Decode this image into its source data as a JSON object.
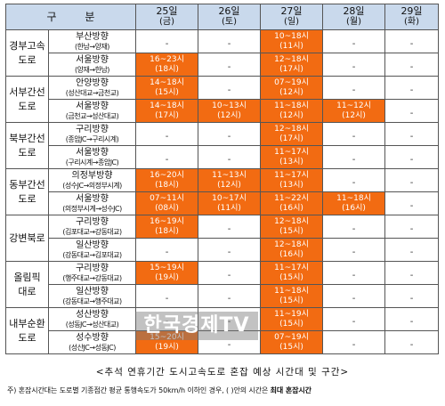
{
  "header": {
    "section": "구 분",
    "days": [
      {
        "date": "25일",
        "weekday": "(금)"
      },
      {
        "date": "26일",
        "weekday": "(토)"
      },
      {
        "date": "27일",
        "weekday": "(일)"
      },
      {
        "date": "28일",
        "weekday": "(월)"
      },
      {
        "date": "29일",
        "weekday": "(화)"
      }
    ]
  },
  "roads": [
    {
      "name": "경부고속\n도로",
      "rows": [
        {
          "dir": "부산방향",
          "sub": "(한남→양재)",
          "cells": [
            {
              "blank": "-"
            },
            {
              "blank": "-"
            },
            {
              "time": "10~18시",
              "hours": "(11시)"
            },
            {
              "blank": "-"
            },
            {
              "blank": "-"
            }
          ]
        },
        {
          "dir": "서울방향",
          "sub": "(양재→한남)",
          "cells": [
            {
              "time": "16~23시",
              "hours": "(18시)"
            },
            {
              "blank": "-"
            },
            {
              "time": "12~18시",
              "hours": "(17시)"
            },
            {
              "blank": "-"
            },
            {
              "blank": "-"
            }
          ]
        }
      ]
    },
    {
      "name": "서부간선\n도로",
      "rows": [
        {
          "dir": "안양방향",
          "sub": "(성산대교→금천교)",
          "cells": [
            {
              "time": "14~18시",
              "hours": "(15시)"
            },
            {
              "blank": "-"
            },
            {
              "time": "07~19시",
              "hours": "(12시)"
            },
            {
              "blank": "-"
            },
            {
              "blank": "-"
            }
          ]
        },
        {
          "dir": "서울방향",
          "sub": "(금천교→성산대교)",
          "cells": [
            {
              "time": "14~18시",
              "hours": "(17시)"
            },
            {
              "time": "10~13시",
              "hours": "(12시)"
            },
            {
              "time": "11~18시",
              "hours": "(12시)"
            },
            {
              "time": "11~12시",
              "hours": "(12시)"
            },
            {
              "blank": "-"
            }
          ]
        }
      ]
    },
    {
      "name": "북부간선\n도로",
      "rows": [
        {
          "dir": "구리방향",
          "sub": "(종암JC→구리시계)",
          "cells": [
            {
              "blank": "-"
            },
            {
              "blank": "-"
            },
            {
              "time": "12~18시",
              "hours": "(17시)"
            },
            {
              "blank": "-"
            },
            {
              "blank": "-"
            }
          ]
        },
        {
          "dir": "서울방향",
          "sub": "(구리시계→종암JC)",
          "cells": [
            {
              "blank": "-"
            },
            {
              "blank": "-"
            },
            {
              "time": "11~17시",
              "hours": "(13시)"
            },
            {
              "blank": "-"
            },
            {
              "blank": "-"
            }
          ]
        }
      ]
    },
    {
      "name": "동부간선\n도로",
      "rows": [
        {
          "dir": "의정부방향",
          "sub": "(성수JC→의정부시계)",
          "cells": [
            {
              "time": "16~20시",
              "hours": "(18시)"
            },
            {
              "time": "11~13시",
              "hours": "(12시)"
            },
            {
              "time": "11~17시",
              "hours": "(13시)"
            },
            {
              "blank": "-"
            },
            {
              "blank": "-"
            }
          ]
        },
        {
          "dir": "서울방향",
          "sub": "(의정부시계→성수JC)",
          "cells": [
            {
              "time": "07~11시",
              "hours": "(08시)"
            },
            {
              "time": "10~17시",
              "hours": "(11시)"
            },
            {
              "time": "11~22시",
              "hours": "(16시)"
            },
            {
              "time": "11~18시",
              "hours": "(16시)"
            },
            {
              "blank": "-"
            }
          ]
        }
      ]
    },
    {
      "name": "강변북로",
      "rows": [
        {
          "dir": "구리방향",
          "sub": "(김포대교→강동대교)",
          "cells": [
            {
              "time": "16~19시",
              "hours": "(18시)"
            },
            {
              "blank": "-"
            },
            {
              "time": "12~18시",
              "hours": "(15시)"
            },
            {
              "blank": "-"
            },
            {
              "blank": "-"
            }
          ]
        },
        {
          "dir": "일산방향",
          "sub": "(강동대교→김포대교)",
          "cells": [
            {
              "blank": "-"
            },
            {
              "blank": "-"
            },
            {
              "time": "12~18시",
              "hours": "(16시)"
            },
            {
              "blank": "-"
            },
            {
              "blank": "-"
            }
          ]
        }
      ]
    },
    {
      "name": "올림픽\n대로",
      "rows": [
        {
          "dir": "구리방향",
          "sub": "(행주대교→강동대교)",
          "cells": [
            {
              "time": "15~19시",
              "hours": "(19시)"
            },
            {
              "blank": "-"
            },
            {
              "time": "11~17시",
              "hours": "(15시)"
            },
            {
              "blank": "-"
            },
            {
              "blank": "-"
            }
          ]
        },
        {
          "dir": "일산방향",
          "sub": "(강동대교→행주대교)",
          "cells": [
            {
              "blank": "-"
            },
            {
              "blank": "-"
            },
            {
              "time": "11~18시",
              "hours": "(15시)"
            },
            {
              "blank": "-"
            },
            {
              "blank": "-"
            }
          ]
        }
      ]
    },
    {
      "name": "내부순환\n도로",
      "rows": [
        {
          "dir": "성산방향",
          "sub": "(성동JC→성산대교)",
          "cells": [
            {
              "blank": "-"
            },
            {
              "blank": "-"
            },
            {
              "time": "11~19시",
              "hours": "(15시)"
            },
            {
              "blank": "-"
            },
            {
              "blank": "-"
            }
          ]
        },
        {
          "dir": "성수방향",
          "sub": "(성산JC→성동JC)",
          "cells": [
            {
              "time": "15~20시",
              "hours": "(19시)"
            },
            {
              "blank": "-"
            },
            {
              "time": "07~19시",
              "hours": "(15시)"
            },
            {
              "blank": "-"
            },
            {
              "blank": "-"
            }
          ]
        }
      ]
    }
  ],
  "watermark": "한국경제TV",
  "caption": "<추석 연휴기간 도시고속도로 혼잡 예상 시간대 및 구간>",
  "note": {
    "prefix": "주) 혼잡시간대는 도로별 기종점간 평균 통행속도가 50km/h 이하인 경우, ( )안의 시간은 ",
    "emph": "최대 혼잡시간"
  },
  "colors": {
    "congested": "#f26b12",
    "header": "#c9d9ec",
    "watermark": "#787878"
  }
}
